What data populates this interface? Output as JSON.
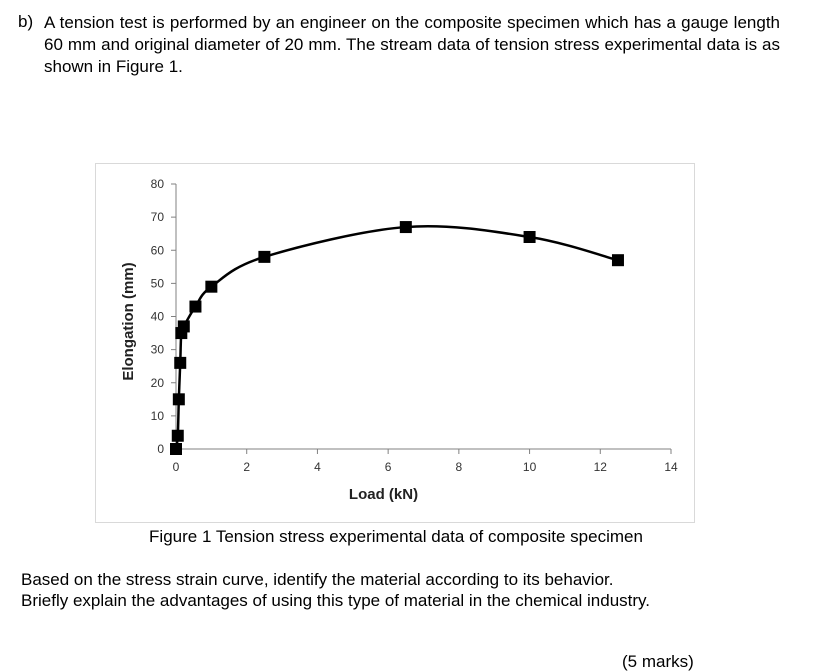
{
  "question": {
    "label": "b)",
    "text": "A tension test is performed by an engineer on the composite specimen which has a gauge length 60 mm and original diameter of 20 mm. The stream data of tension stress experimental data is as shown in Figure 1."
  },
  "figure": {
    "caption": "Figure 1 Tension stress experimental data of composite specimen"
  },
  "chart_data": {
    "type": "scatter",
    "title": "",
    "xlabel": "Load (kN)",
    "ylabel": "Elongation (mm)",
    "xlim": [
      0,
      14
    ],
    "ylim": [
      0,
      80
    ],
    "x_ticks": [
      0,
      2,
      4,
      6,
      8,
      10,
      12,
      14
    ],
    "y_ticks": [
      0,
      10,
      20,
      30,
      40,
      50,
      60,
      70,
      80
    ],
    "grid": false,
    "series": [
      {
        "marker": "square",
        "line": "smooth",
        "color": "#000000",
        "points": [
          {
            "x": 0.0,
            "y": 0
          },
          {
            "x": 0.05,
            "y": 4
          },
          {
            "x": 0.08,
            "y": 15
          },
          {
            "x": 0.12,
            "y": 26
          },
          {
            "x": 0.15,
            "y": 35
          },
          {
            "x": 0.22,
            "y": 37
          },
          {
            "x": 0.55,
            "y": 43
          },
          {
            "x": 1.0,
            "y": 49
          },
          {
            "x": 2.5,
            "y": 58
          },
          {
            "x": 6.5,
            "y": 67
          },
          {
            "x": 10.0,
            "y": 64
          },
          {
            "x": 12.5,
            "y": 57
          }
        ]
      }
    ]
  },
  "instructions": {
    "line1": "Based on the stress strain curve, identify the material according to its behavior.",
    "line2": "Briefly explain the advantages of using this type of material in the chemical industry."
  },
  "marks": "(5 marks)"
}
